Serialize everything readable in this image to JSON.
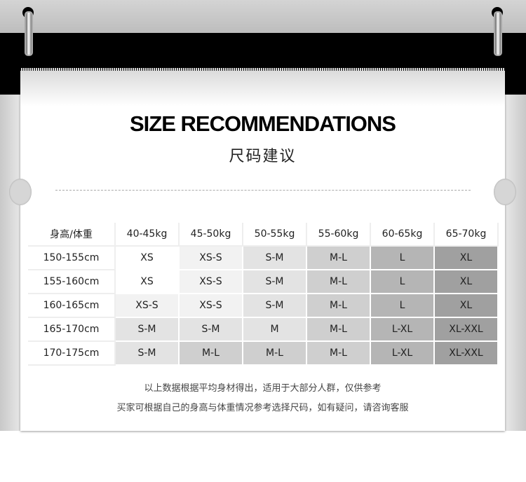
{
  "header": {
    "title": "SIZE RECOMMENDATIONS",
    "subtitle": "尺码建议"
  },
  "table": {
    "corner": "身高/体重",
    "columns": [
      "40-45kg",
      "45-50kg",
      "50-55kg",
      "55-60kg",
      "60-65kg",
      "65-70kg"
    ],
    "rows": [
      {
        "height": "150-155cm",
        "sizes": [
          "XS",
          "XS-S",
          "S-M",
          "M-L",
          "L",
          "XL"
        ]
      },
      {
        "height": "155-160cm",
        "sizes": [
          "XS",
          "XS-S",
          "S-M",
          "M-L",
          "L",
          "XL"
        ]
      },
      {
        "height": "160-165cm",
        "sizes": [
          "XS-S",
          "XS-S",
          "S-M",
          "M-L",
          "L",
          "XL"
        ]
      },
      {
        "height": "165-170cm",
        "sizes": [
          "S-M",
          "S-M",
          "M",
          "M-L",
          "L-XL",
          "XL-XXL"
        ]
      },
      {
        "height": "170-175cm",
        "sizes": [
          "S-M",
          "M-L",
          "M-L",
          "M-L",
          "L-XL",
          "XL-XXL"
        ]
      }
    ]
  },
  "size_colors": {
    "XS": "#ffffff",
    "XS-S": "#f2f2f2",
    "S-M": "#e3e3e3",
    "M": "#e3e3e3",
    "M-L": "#cfcfcf",
    "L": "#b5b5b5",
    "L-XL": "#b5b5b5",
    "XL": "#a0a0a0",
    "XL-XXL": "#a0a0a0"
  },
  "notes": [
    "以上数据根据平均身材得出，适用于大部分人群，仅供参考",
    "买家可根据自己的身高与体重情况参考选择尺码，如有疑问，请咨询客服"
  ]
}
